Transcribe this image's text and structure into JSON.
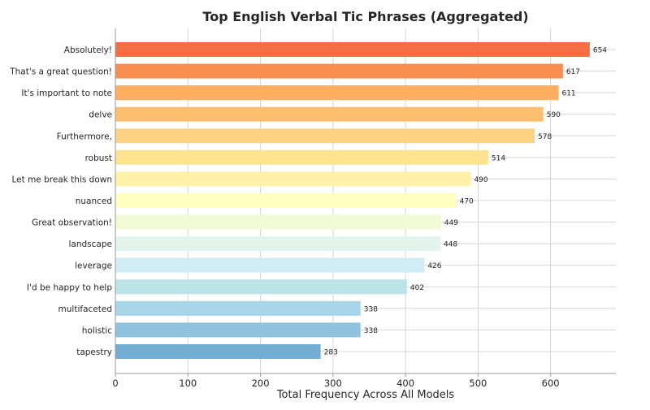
{
  "chart_data": {
    "type": "bar",
    "orientation": "horizontal",
    "title": "Top English Verbal Tic Phrases (Aggregated)",
    "xlabel": "Total Frequency Across All Models",
    "ylabel": "",
    "xlim": [
      0,
      690
    ],
    "xticks": [
      0,
      100,
      200,
      300,
      400,
      500,
      600
    ],
    "grid": true,
    "categories": [
      "Absolutely!",
      "That's a great question!",
      "It's important to note",
      "delve",
      "Furthermore,",
      "robust",
      "Let me break this down",
      "nuanced",
      "Great observation!",
      "landscape",
      "leverage",
      "I'd be happy to help",
      "multifaceted",
      "holistic",
      "tapestry"
    ],
    "values": [
      654,
      617,
      611,
      590,
      578,
      514,
      490,
      470,
      449,
      448,
      426,
      402,
      338,
      338,
      283
    ],
    "colors": [
      "#f46d43",
      "#f88d52",
      "#fdae61",
      "#fdbf6f",
      "#fed283",
      "#fee391",
      "#fff1a8",
      "#ffffbf",
      "#f1f9d6",
      "#e2f4ec",
      "#d0ecf4",
      "#bde3ea",
      "#a7d6e8",
      "#8fc3de",
      "#74add1"
    ]
  }
}
